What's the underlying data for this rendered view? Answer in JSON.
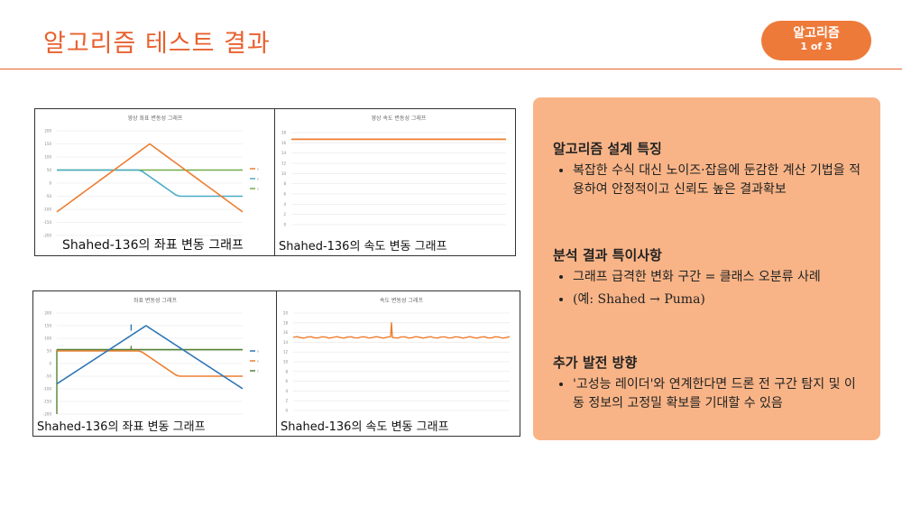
{
  "header": {
    "title": "알고리즘 테스트 결과",
    "badge_line1": "알고리즘",
    "badge_line2": "1 of 3"
  },
  "charts": {
    "top_left": {
      "title": "영상 좌표 변동성 그래프",
      "caption": "Shahed-136의 좌표 변동 그래프",
      "y_ticks": [
        "200",
        "150",
        "100",
        "50",
        "0",
        "-50",
        "-100",
        "-150",
        "-200"
      ],
      "legend": [
        "x",
        "y",
        "z"
      ],
      "colors": [
        "#ed7d31",
        "#4aacc6",
        "#70ad47"
      ]
    },
    "top_right": {
      "title": "영상 속도 변동성 그래프",
      "caption": "Shahed-136의 속도 변동 그래프",
      "y_ticks": [
        "18",
        "16",
        "14",
        "12",
        "10",
        "8",
        "6",
        "4",
        "2",
        "0"
      ],
      "color": "#ed7d31"
    },
    "bottom_left": {
      "title": "좌표 변동성 그래프",
      "caption": "Shahed-136의 좌표 변동 그래프",
      "y_ticks": [
        "200",
        "150",
        "100",
        "50",
        "0",
        "-50",
        "-100",
        "-150",
        "-200"
      ],
      "legend": [
        "x",
        "y",
        "z"
      ],
      "colors": [
        "#2e75b6",
        "#ed7d31",
        "#548235"
      ]
    },
    "bottom_right": {
      "title": "속도 변동성 그래프",
      "caption": "Shahed-136의 속도 변동 그래프",
      "y_ticks": [
        "20",
        "18",
        "16",
        "14",
        "12",
        "10",
        "8",
        "6",
        "4",
        "2",
        "0"
      ],
      "color": "#ed7d31"
    }
  },
  "info": {
    "sections": [
      {
        "heading": "알고리즘 설계 특징",
        "bullets": [
          "복잡한 수식 대신 노이즈·잡음에 둔감한 계산 기법을 적용하여 안정적이고 신뢰도 높은 결과확보"
        ]
      },
      {
        "heading": "분석 결과 특이사항",
        "bullets": [
          "그래프 급격한 변화 구간 = 클래스 오분류 사례",
          "(예: Shahed → Puma)"
        ]
      },
      {
        "heading": "추가 발전 방향",
        "bullets": [
          "'고성능 레이더'와 연계한다면 드론 전 구간 탐지 및 이동 정보의 고정밀 확보를 기대할 수 있음"
        ]
      }
    ]
  }
}
